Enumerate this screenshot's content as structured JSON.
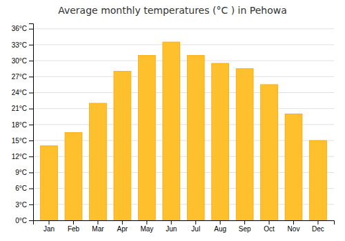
{
  "chart_data": {
    "type": "bar",
    "title": "Average monthly temperatures (°C ) in Pehowa",
    "categories": [
      "Jan",
      "Feb",
      "Mar",
      "Apr",
      "May",
      "Jun",
      "Jul",
      "Aug",
      "Sep",
      "Oct",
      "Nov",
      "Dec"
    ],
    "values": [
      14,
      16.5,
      22,
      28,
      31,
      33.5,
      31,
      29.5,
      28.5,
      25.5,
      20,
      15
    ],
    "color": "#FFC02E",
    "ylim": [
      0,
      37
    ],
    "yticks": [
      {
        "value": 0,
        "label": "0°C"
      },
      {
        "value": 3,
        "label": "3°C"
      },
      {
        "value": 6,
        "label": "6°C"
      },
      {
        "value": 9,
        "label": "9°C"
      },
      {
        "value": 12,
        "label": "12°C"
      },
      {
        "value": 15,
        "label": "15°C"
      },
      {
        "value": 18,
        "label": "18°C"
      },
      {
        "value": 21,
        "label": "21°C"
      },
      {
        "value": 24,
        "label": "24°C"
      },
      {
        "value": 27,
        "label": "27°C"
      },
      {
        "value": 30,
        "label": "30°C"
      },
      {
        "value": 33,
        "label": "33°C"
      },
      {
        "value": 36,
        "label": "36°C"
      }
    ],
    "grid": true
  }
}
